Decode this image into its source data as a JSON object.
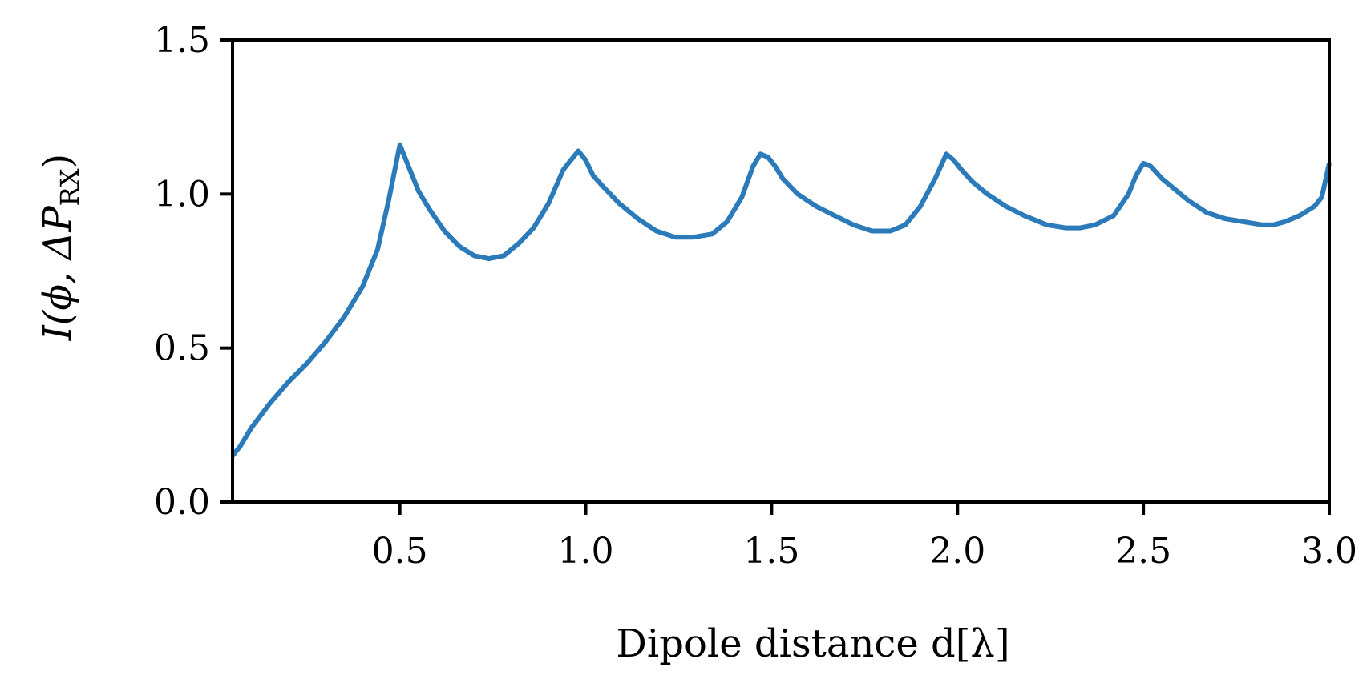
{
  "chart_data": {
    "type": "line",
    "xlabel": "Dipole distance d[λ]",
    "ylabel": "I(ϕ, ΔP_RX)",
    "ylabel_main": "I(ϕ, ΔP",
    "ylabel_sub": "RX",
    "ylabel_close": ")",
    "xlim": [
      0.05,
      3.0
    ],
    "ylim": [
      0.0,
      1.5
    ],
    "xticks": [
      0.5,
      1.0,
      1.5,
      2.0,
      2.5,
      3.0
    ],
    "xtick_labels": [
      "0.5",
      "1.0",
      "1.5",
      "2.0",
      "2.5",
      "3.0"
    ],
    "yticks": [
      0.0,
      0.5,
      1.0,
      1.5
    ],
    "ytick_labels": [
      "0.0",
      "0.5",
      "1.0",
      "1.5"
    ],
    "grid": false,
    "series": [
      {
        "color": "#2b7bba",
        "x": [
          0.05,
          0.07,
          0.1,
          0.15,
          0.2,
          0.25,
          0.3,
          0.35,
          0.4,
          0.44,
          0.47,
          0.5,
          0.52,
          0.55,
          0.58,
          0.62,
          0.66,
          0.7,
          0.74,
          0.78,
          0.82,
          0.86,
          0.9,
          0.94,
          0.98,
          1.0,
          1.02,
          1.05,
          1.09,
          1.14,
          1.19,
          1.24,
          1.29,
          1.34,
          1.38,
          1.42,
          1.45,
          1.47,
          1.49,
          1.51,
          1.53,
          1.57,
          1.62,
          1.67,
          1.72,
          1.77,
          1.82,
          1.86,
          1.9,
          1.94,
          1.97,
          1.99,
          2.01,
          2.04,
          2.08,
          2.13,
          2.18,
          2.24,
          2.29,
          2.33,
          2.37,
          2.42,
          2.46,
          2.48,
          2.5,
          2.52,
          2.55,
          2.58,
          2.62,
          2.67,
          2.72,
          2.77,
          2.82,
          2.85,
          2.88,
          2.92,
          2.96,
          2.98,
          3.0
        ],
        "y": [
          0.15,
          0.18,
          0.24,
          0.32,
          0.39,
          0.45,
          0.52,
          0.6,
          0.7,
          0.82,
          0.98,
          1.16,
          1.1,
          1.01,
          0.95,
          0.88,
          0.83,
          0.8,
          0.79,
          0.8,
          0.84,
          0.89,
          0.97,
          1.08,
          1.14,
          1.11,
          1.06,
          1.02,
          0.97,
          0.92,
          0.88,
          0.86,
          0.86,
          0.87,
          0.91,
          0.99,
          1.09,
          1.13,
          1.12,
          1.09,
          1.05,
          1.0,
          0.96,
          0.93,
          0.9,
          0.88,
          0.88,
          0.9,
          0.96,
          1.05,
          1.13,
          1.11,
          1.08,
          1.04,
          1.0,
          0.96,
          0.93,
          0.9,
          0.89,
          0.89,
          0.9,
          0.93,
          1.0,
          1.06,
          1.1,
          1.09,
          1.05,
          1.02,
          0.98,
          0.94,
          0.92,
          0.91,
          0.9,
          0.9,
          0.91,
          0.93,
          0.96,
          0.99,
          1.1
        ]
      }
    ]
  }
}
